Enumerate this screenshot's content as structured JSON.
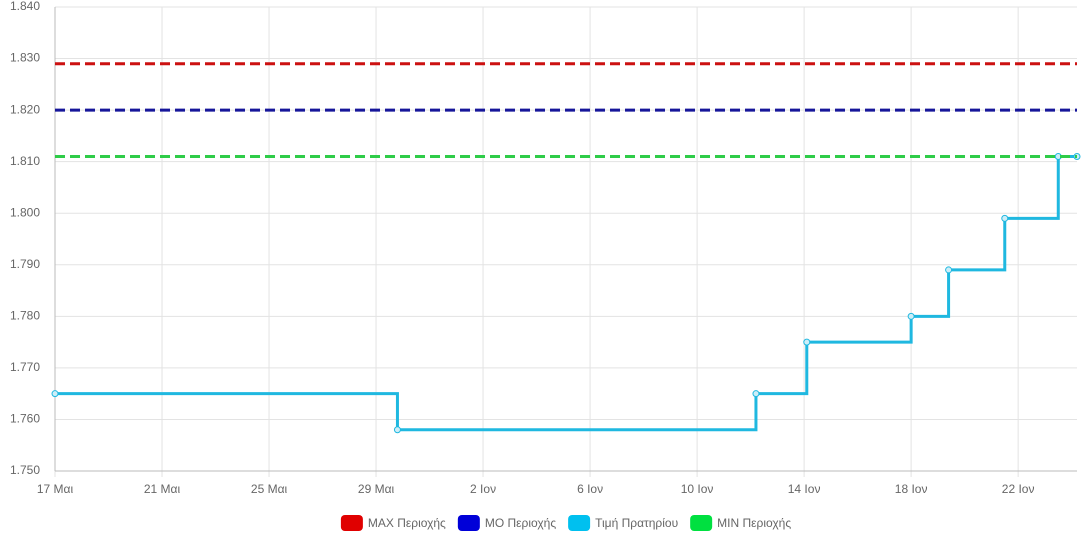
{
  "chart_data": {
    "type": "line",
    "x": [
      0,
      12.8,
      26.2,
      28.1,
      32.0,
      33.4,
      35.5,
      37.5,
      38.2
    ],
    "series": [
      {
        "name": "MAX Περιοχής",
        "color": "#cc1111",
        "legend_color": "#e00000",
        "dashed": true,
        "values": [
          1.829,
          1.829,
          1.829,
          1.829,
          1.829,
          1.829,
          1.829,
          1.829,
          1.829
        ]
      },
      {
        "name": "ΜΟ Περιοχής",
        "color": "#16169a",
        "legend_color": "#0000d8",
        "dashed": true,
        "values": [
          1.82,
          1.82,
          1.82,
          1.82,
          1.82,
          1.82,
          1.82,
          1.82,
          1.82
        ]
      },
      {
        "name": "Τιμή Πρατηρίου",
        "color": "#1fb8e0",
        "legend_color": "#00c0ef",
        "step": true,
        "values": [
          1.765,
          1.758,
          1.765,
          1.775,
          1.78,
          1.789,
          1.799,
          1.811,
          1.811
        ]
      },
      {
        "name": "MIN Περιοχής",
        "color": "#2ecc48",
        "legend_color": "#00e040",
        "dashed": true,
        "values": [
          1.811,
          1.811,
          1.811,
          1.811,
          1.811,
          1.811,
          1.811,
          1.811,
          1.811
        ]
      }
    ],
    "xlim": [
      0,
      38.2
    ],
    "xticks": [
      {
        "value": 0,
        "label": "17 Μαι"
      },
      {
        "value": 4,
        "label": "21 Μαι"
      },
      {
        "value": 8,
        "label": "25 Μαι"
      },
      {
        "value": 12,
        "label": "29 Μαι"
      },
      {
        "value": 16,
        "label": "2 Ιον"
      },
      {
        "value": 20,
        "label": "6 Ιον"
      },
      {
        "value": 24,
        "label": "10 Ιον"
      },
      {
        "value": 28,
        "label": "14 Ιον"
      },
      {
        "value": 32,
        "label": "18 Ιον"
      },
      {
        "value": 36,
        "label": "22 Ιον"
      }
    ],
    "ylim": [
      1.75,
      1.84
    ],
    "yticks": [
      {
        "value": 1.75,
        "label": "1.750"
      },
      {
        "value": 1.76,
        "label": "1.760"
      },
      {
        "value": 1.77,
        "label": "1.770"
      },
      {
        "value": 1.78,
        "label": "1.780"
      },
      {
        "value": 1.79,
        "label": "1.790"
      },
      {
        "value": 1.8,
        "label": "1.800"
      },
      {
        "value": 1.81,
        "label": "1.810"
      },
      {
        "value": 1.82,
        "label": "1.820"
      },
      {
        "value": 1.83,
        "label": "1.830"
      },
      {
        "value": 1.84,
        "label": "1.840"
      }
    ],
    "grid": true,
    "legend": "bottom"
  }
}
